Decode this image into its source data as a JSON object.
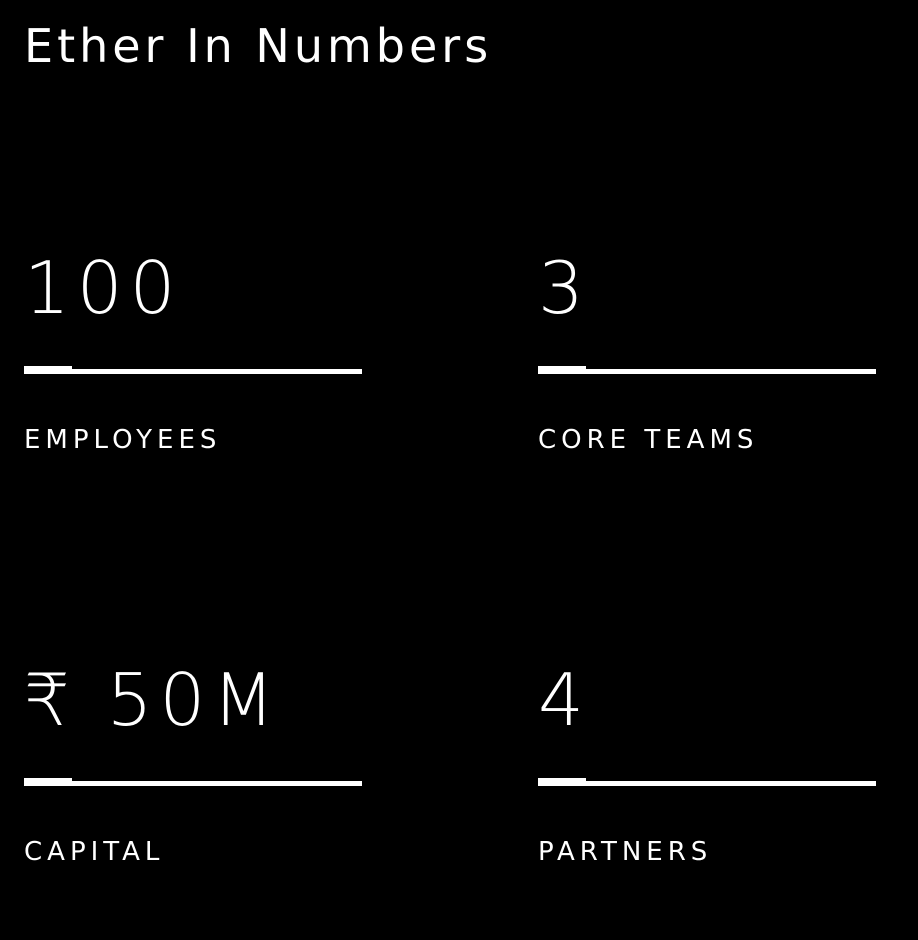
{
  "header": {
    "title": "Ether In Numbers"
  },
  "stats": [
    {
      "value": "100",
      "label": "EMPLOYEES"
    },
    {
      "value": "3",
      "label": "CORE TEAMS"
    },
    {
      "value": "₹ 50M",
      "label": "CAPITAL"
    },
    {
      "value": "4",
      "label": "PARTNERS"
    }
  ],
  "colors": {
    "background": "#000000",
    "text": "#ffffff",
    "rule": "#ffffff"
  }
}
